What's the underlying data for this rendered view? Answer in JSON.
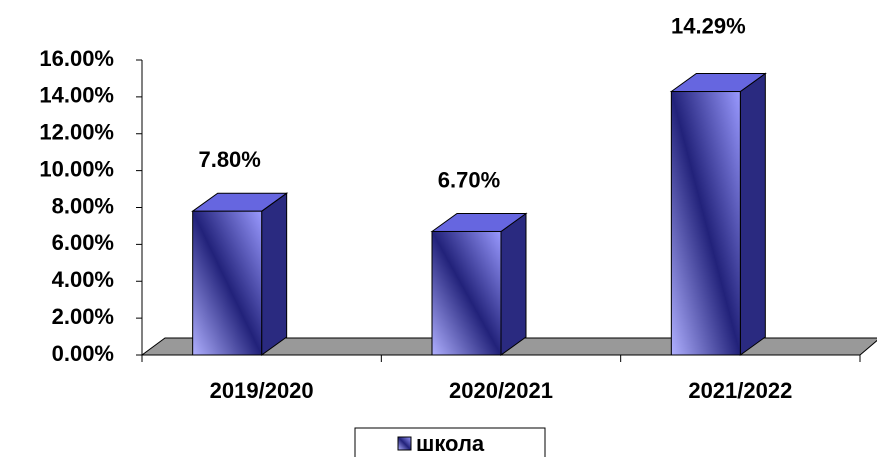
{
  "chart_data": {
    "type": "bar3d",
    "categories": [
      "2019/2020",
      "2020/2021",
      "2021/2022"
    ],
    "series": [
      {
        "name": "школа",
        "color": "#6666e0",
        "values": [
          7.8,
          6.7,
          14.29
        ],
        "value_labels": [
          "7.80%",
          "6.70%",
          "14.29%"
        ]
      }
    ],
    "ylim": [
      0,
      16
    ],
    "yticks": [
      {
        "value": 0,
        "label": "0.00%"
      },
      {
        "value": 2,
        "label": "2.00%"
      },
      {
        "value": 4,
        "label": "4.00%"
      },
      {
        "value": 6,
        "label": "6.00%"
      },
      {
        "value": 8,
        "label": "8.00%"
      },
      {
        "value": 10,
        "label": "10.00%"
      },
      {
        "value": 12,
        "label": "12.00%"
      },
      {
        "value": 14,
        "label": "14.00%"
      },
      {
        "value": 16,
        "label": "16.00%"
      }
    ],
    "legend": "bottom"
  }
}
